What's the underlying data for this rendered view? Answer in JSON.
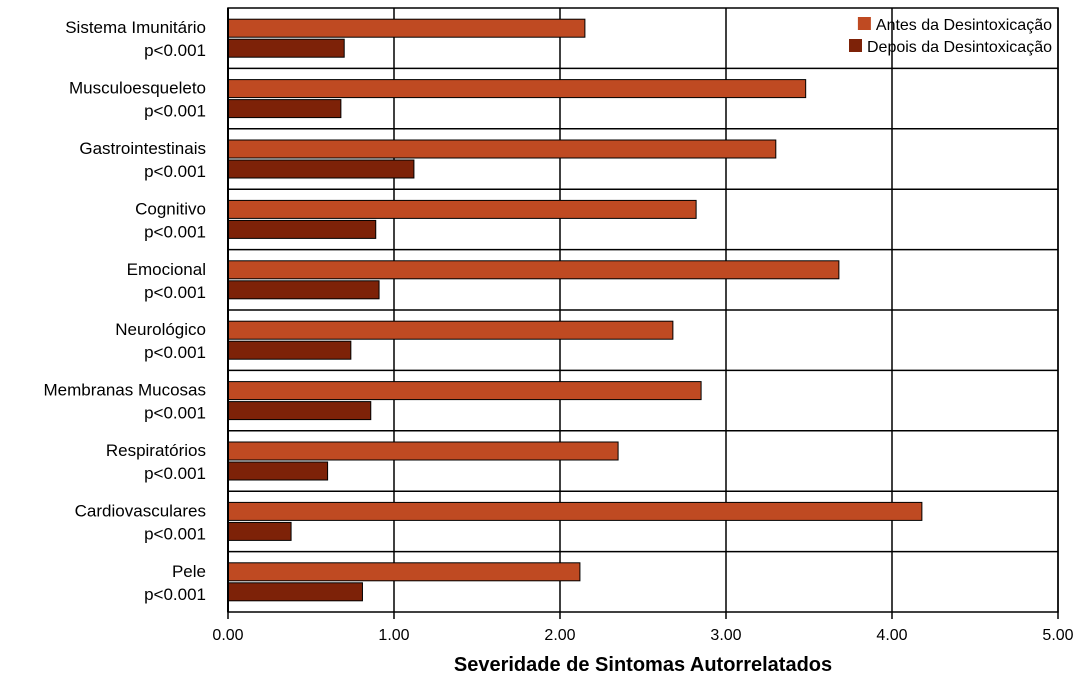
{
  "chart_data": {
    "type": "bar",
    "orientation": "horizontal",
    "categories": [
      "Sistema Imunitário",
      "Musculoesqueleto",
      "Gastrointestinais",
      "Cognitivo",
      "Emocional",
      "Neurológico",
      "Membranas Mucosas",
      "Respiratórios",
      "Cardiovasculares",
      "Pele"
    ],
    "category_sublabels": [
      "p<0.001",
      "p<0.001",
      "p<0.001",
      "p<0.001",
      "p<0.001",
      "p<0.001",
      "p<0.001",
      "p<0.001",
      "p<0.001",
      "p<0.001"
    ],
    "series": [
      {
        "name": "Antes da Desintoxicação",
        "color": "#bf4a22",
        "values": [
          2.15,
          3.48,
          3.3,
          2.82,
          3.68,
          2.68,
          2.85,
          2.35,
          4.18,
          2.12
        ]
      },
      {
        "name": "Depois da Desintoxicação",
        "color": "#7d2208",
        "values": [
          0.7,
          0.68,
          1.12,
          0.89,
          0.91,
          0.74,
          0.86,
          0.6,
          0.38,
          0.81
        ]
      }
    ],
    "xlabel": "Severidade de Sintomas Autorrelatados",
    "xlim": [
      0,
      5
    ],
    "xticks": [
      "0.00",
      "1.00",
      "2.00",
      "3.00",
      "4.00",
      "5.00"
    ],
    "grid": true,
    "legend_position": "top-right"
  }
}
